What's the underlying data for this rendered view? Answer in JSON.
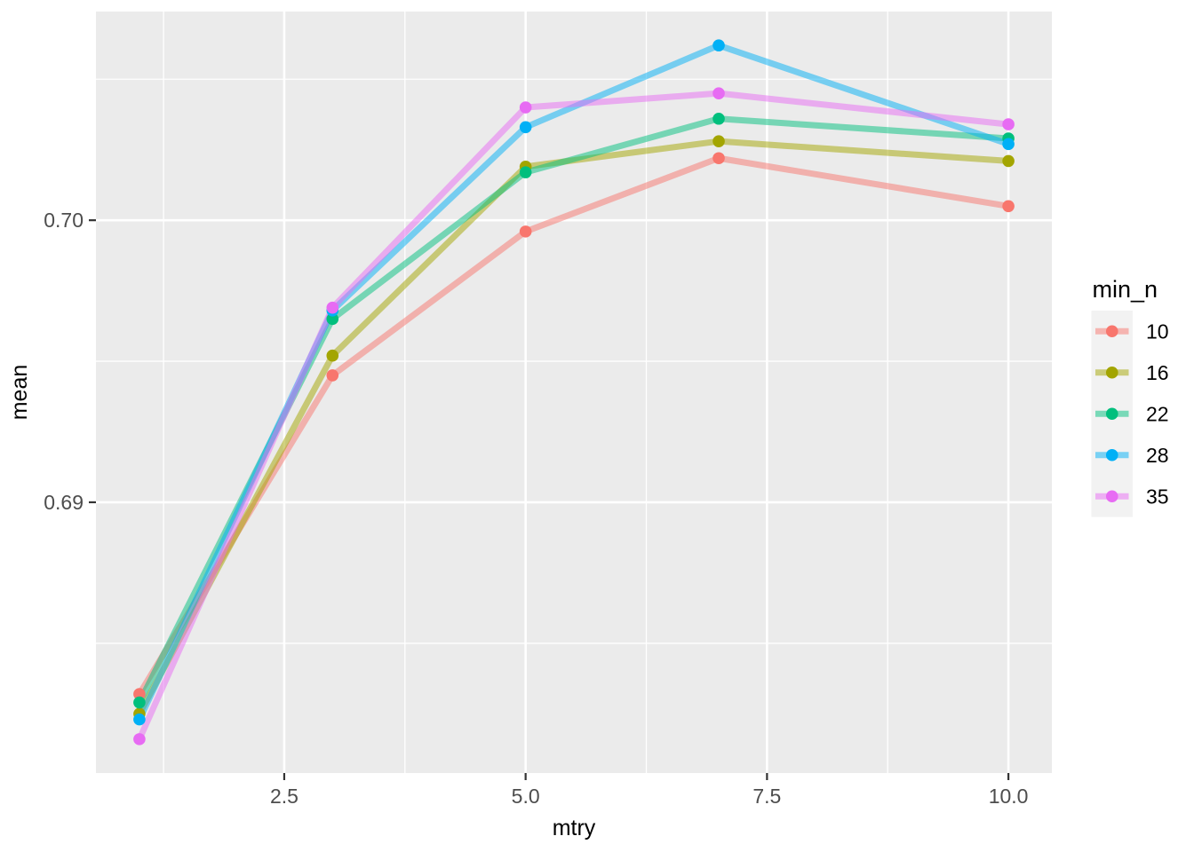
{
  "figure": {
    "background": "#FFFFFF"
  },
  "chart_data": {
    "type": "line",
    "title": "",
    "xlabel": "mtry",
    "ylabel": "mean",
    "grid": "on",
    "x": [
      1,
      3,
      5,
      7,
      10
    ],
    "series": [
      {
        "name": "10",
        "color": "#F8766D",
        "values": [
          0.6832,
          0.6945,
          0.6996,
          0.7022,
          0.7005
        ]
      },
      {
        "name": "16",
        "color": "#A3A500",
        "values": [
          0.6825,
          0.6952,
          0.7019,
          0.7028,
          0.7021
        ]
      },
      {
        "name": "22",
        "color": "#00BF7D",
        "values": [
          0.6829,
          0.6965,
          0.7017,
          0.7036,
          0.7029
        ]
      },
      {
        "name": "28",
        "color": "#00B0F6",
        "values": [
          0.6823,
          0.6968,
          0.7033,
          0.7062,
          0.7027
        ]
      },
      {
        "name": "35",
        "color": "#E76BF3",
        "values": [
          0.6816,
          0.6969,
          0.704,
          0.7045,
          0.7034
        ]
      }
    ],
    "x_domain": [
      0.55,
      10.45
    ],
    "y_domain": [
      0.6804,
      0.7074
    ],
    "x_ticks": [
      {
        "value": 2.5,
        "label": "2.5"
      },
      {
        "value": 5.0,
        "label": "5.0"
      },
      {
        "value": 7.5,
        "label": "7.5"
      },
      {
        "value": 10.0,
        "label": "10.0"
      }
    ],
    "y_ticks": [
      {
        "value": 0.69,
        "label": "0.69"
      },
      {
        "value": 0.7,
        "label": "0.70"
      }
    ],
    "x_minor": [
      1.25,
      3.75,
      6.25,
      8.75
    ],
    "y_minor": [
      0.685,
      0.695,
      0.705
    ],
    "legend": {
      "title": "min_n",
      "position": "right",
      "entries": [
        "10",
        "16",
        "22",
        "28",
        "35"
      ]
    },
    "style": {
      "panel_bg": "#EBEBEB",
      "grid_color": "#FFFFFF",
      "legend_key_bg": "#F2F2F2",
      "tick_label_color": "#4D4D4D",
      "tick_mark_color": "#333333",
      "title_color": "#000000",
      "line_alpha": 0.5,
      "line_width": 7,
      "point_radius": 6.8
    }
  }
}
